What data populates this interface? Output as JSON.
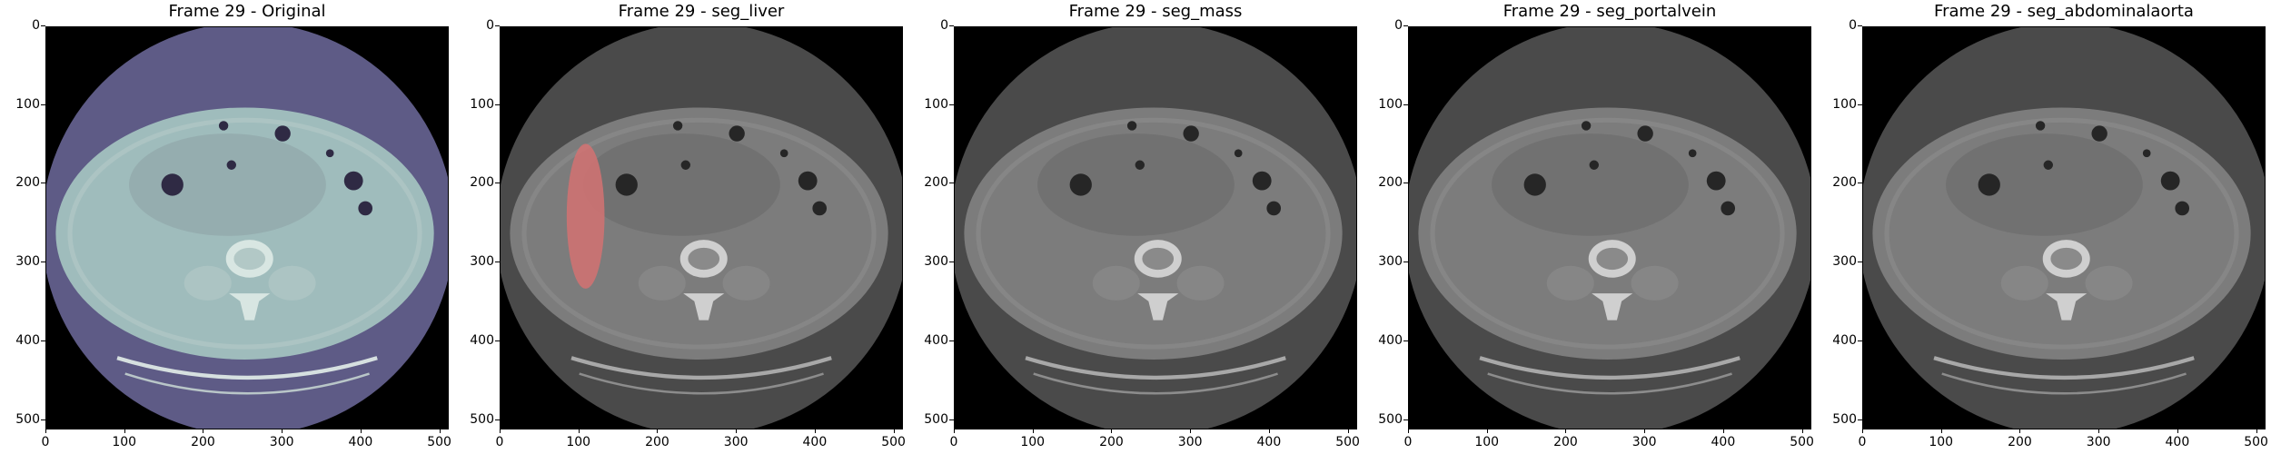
{
  "panels": [
    {
      "title": "Frame 29 - Original",
      "mode": "original",
      "overlay": null
    },
    {
      "title": "Frame 29 - seg_liver",
      "mode": "gray",
      "overlay": "liver"
    },
    {
      "title": "Frame 29 - seg_mass",
      "mode": "gray",
      "overlay": null
    },
    {
      "title": "Frame 29 - seg_portalvein",
      "mode": "gray",
      "overlay": null
    },
    {
      "title": "Frame 29 - seg_abdominalaorta",
      "mode": "gray",
      "overlay": null
    }
  ],
  "axis": {
    "x_ticks": [
      "0",
      "100",
      "200",
      "300",
      "400",
      "500"
    ],
    "y_ticks": [
      "0",
      "100",
      "200",
      "300",
      "400",
      "500"
    ],
    "xlim": [
      0,
      512
    ],
    "ylim": [
      0,
      512
    ]
  },
  "colors": {
    "original_outer": "#5e5b86",
    "original_inner": "#9fbcbc",
    "gray_outer": "#4a4a4a",
    "gray_inner": "#7c7c7c",
    "overlay": "#d47272"
  }
}
